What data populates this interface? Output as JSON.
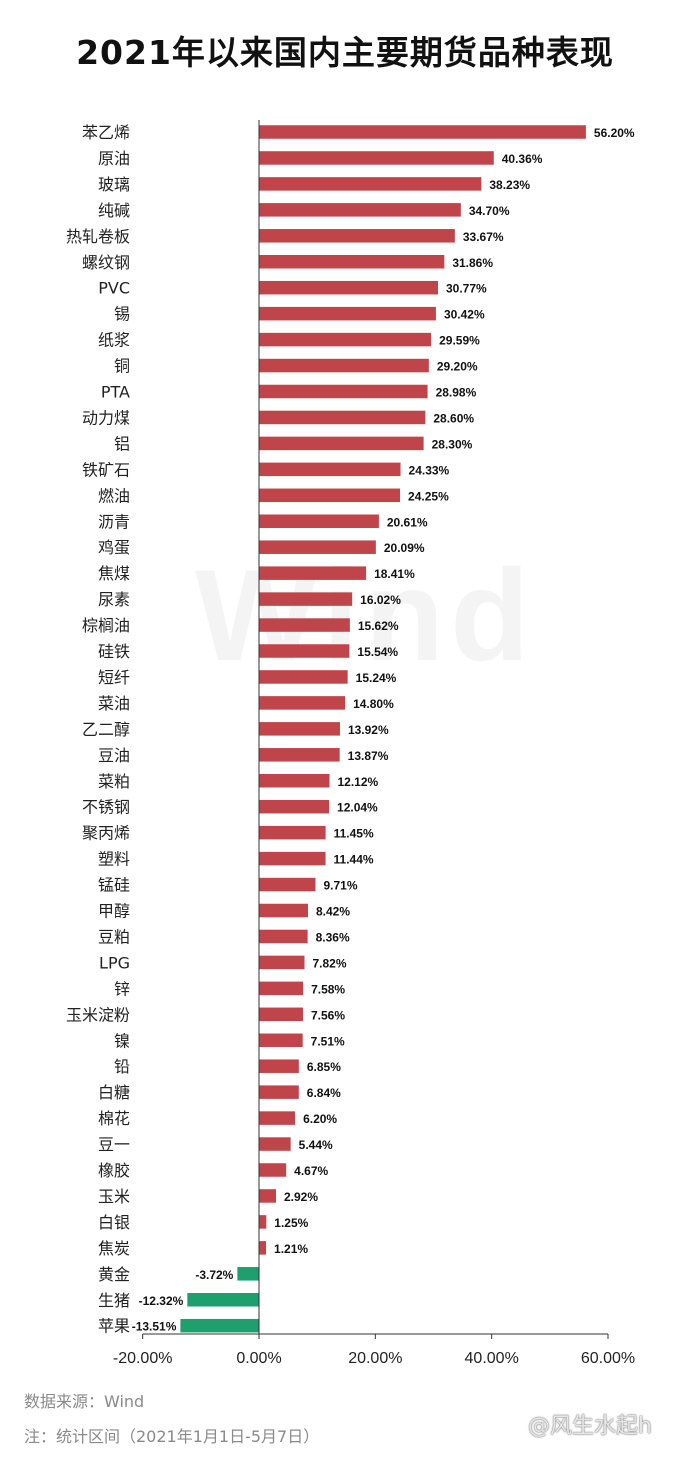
{
  "title": "2021年以来国内主要期货品种表现",
  "footer": {
    "source": "数据来源：Wind",
    "note": "注：统计区间（2021年1月1日-5月7日）"
  },
  "watermarks": {
    "wind": "Wind",
    "weibo": "@风生水起h"
  },
  "colors": {
    "positive": "#c0454a",
    "negative": "#1f9e6e",
    "axis": "#333333"
  },
  "chart_data": {
    "type": "bar",
    "orientation": "horizontal",
    "title": "2021年以来国内主要期货品种表现",
    "xlim": [
      -20,
      60
    ],
    "xticks": [
      "-20.00%",
      "0.00%",
      "20.00%",
      "40.00%",
      "60.00%"
    ],
    "categories": [
      "苯乙烯",
      "原油",
      "玻璃",
      "纯碱",
      "热轧卷板",
      "螺纹钢",
      "PVC",
      "锡",
      "纸浆",
      "铜",
      "PTA",
      "动力煤",
      "铝",
      "铁矿石",
      "燃油",
      "沥青",
      "鸡蛋",
      "焦煤",
      "尿素",
      "棕榈油",
      "硅铁",
      "短纤",
      "菜油",
      "乙二醇",
      "豆油",
      "菜粕",
      "不锈钢",
      "聚丙烯",
      "塑料",
      "锰硅",
      "甲醇",
      "豆粕",
      "LPG",
      "锌",
      "玉米淀粉",
      "镍",
      "铅",
      "白糖",
      "棉花",
      "豆一",
      "橡胶",
      "玉米",
      "白银",
      "焦炭",
      "黄金",
      "生猪",
      "苹果"
    ],
    "values": [
      56.2,
      40.36,
      38.23,
      34.7,
      33.67,
      31.86,
      30.77,
      30.42,
      29.59,
      29.2,
      28.98,
      28.6,
      28.3,
      24.33,
      24.25,
      20.61,
      20.09,
      18.41,
      16.02,
      15.62,
      15.54,
      15.24,
      14.8,
      13.92,
      13.87,
      12.12,
      12.04,
      11.45,
      11.44,
      9.71,
      8.42,
      8.36,
      7.82,
      7.58,
      7.56,
      7.51,
      6.85,
      6.84,
      6.2,
      5.44,
      4.67,
      2.92,
      1.25,
      1.21,
      -3.72,
      -12.32,
      -13.51
    ],
    "data_labels": [
      "56.20%",
      "40.36%",
      "38.23%",
      "34.70%",
      "33.67%",
      "31.86%",
      "30.77%",
      "30.42%",
      "29.59%",
      "29.20%",
      "28.98%",
      "28.60%",
      "28.30%",
      "24.33%",
      "24.25%",
      "20.61%",
      "20.09%",
      "18.41%",
      "16.02%",
      "15.62%",
      "15.54%",
      "15.24%",
      "14.80%",
      "13.92%",
      "13.87%",
      "12.12%",
      "12.04%",
      "11.45%",
      "11.44%",
      "9.71%",
      "8.42%",
      "8.36%",
      "7.82%",
      "7.58%",
      "7.56%",
      "7.51%",
      "6.85%",
      "6.84%",
      "6.20%",
      "5.44%",
      "4.67%",
      "2.92%",
      "1.25%",
      "1.21%",
      "-3.72%",
      "-12.32%",
      "-13.51%"
    ]
  }
}
